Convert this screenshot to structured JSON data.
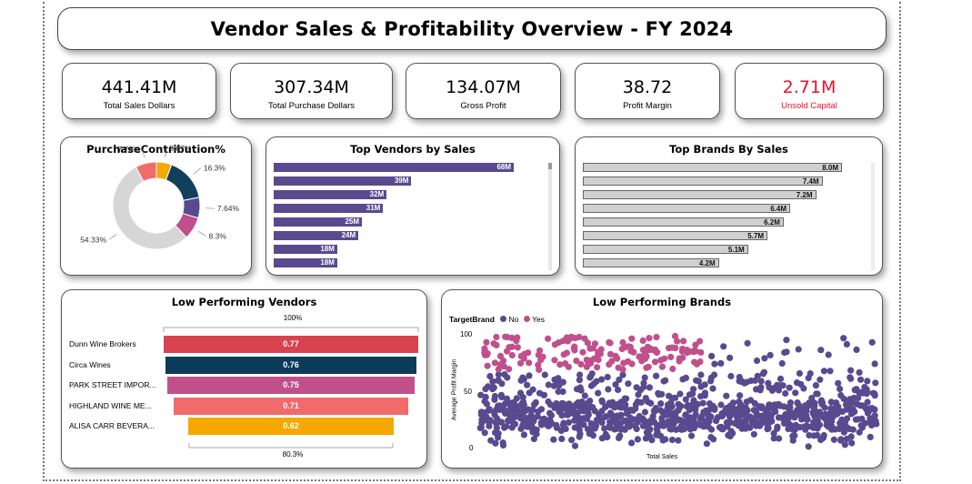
{
  "title": "Vendor Sales & Profitability Overview - FY 2024",
  "kpis": [
    {
      "value": "441.41M",
      "label": "Total Sales Dollars",
      "color": "#000000"
    },
    {
      "value": "307.34M",
      "label": "Total Purchase Dollars",
      "color": "#000000"
    },
    {
      "value": "134.07M",
      "label": "Gross Profit",
      "color": "#000000"
    },
    {
      "value": "38.72",
      "label": "Profit Margin",
      "color": "#000000"
    },
    {
      "value": "2.71M",
      "label": "Unsold Capital",
      "color": "#e8112d"
    }
  ],
  "purchase_contribution": {
    "title": "PurchaseContribution%",
    "slices": [
      {
        "label": "5.67%",
        "value": 5.67,
        "color": "#f5a800"
      },
      {
        "label": "16.3%",
        "value": 16.3,
        "color": "#123f5c"
      },
      {
        "label": "7.64%",
        "value": 7.64,
        "color": "#574a8f"
      },
      {
        "label": "8.3%",
        "value": 8.3,
        "color": "#c0508c"
      },
      {
        "label": "54.33%",
        "value": 54.33,
        "color": "#d6d6d6"
      },
      {
        "label": "7.76%",
        "value": 7.76,
        "color": "#f26a6a"
      }
    ]
  },
  "top_vendors": {
    "title": "Top Vendors by Sales",
    "color": "#574a8f",
    "values": [
      68,
      39,
      32,
      31,
      25,
      24,
      18,
      18
    ],
    "labels": [
      "68M",
      "39M",
      "32M",
      "31M",
      "25M",
      "24M",
      "18M",
      "18M"
    ]
  },
  "top_brands": {
    "title": "Top Brands By Sales",
    "color": "#d0d0d0",
    "values": [
      8.0,
      7.4,
      7.2,
      6.4,
      6.2,
      5.7,
      5.1,
      4.2
    ],
    "labels": [
      "8.0M",
      "7.4M",
      "7.2M",
      "6.4M",
      "6.2M",
      "5.7M",
      "5.1M",
      "4.2M"
    ]
  },
  "low_vendors": {
    "title": "Low Performing Vendors",
    "top_label": "100%",
    "bottom_label": "80.3%",
    "rows": [
      {
        "name": "Dunn Wine Brokers",
        "value": 0.77,
        "label": "0.77",
        "color": "#d9434f"
      },
      {
        "name": "Circa Wines",
        "value": 0.76,
        "label": "0.76",
        "color": "#0d3b5a"
      },
      {
        "name": "PARK STREET IMPOR...",
        "value": 0.75,
        "label": "0.75",
        "color": "#c0508c"
      },
      {
        "name": "HIGHLAND WINE ME...",
        "value": 0.71,
        "label": "0.71",
        "color": "#f26a6a"
      },
      {
        "name": "ALISA CARR BEVERA...",
        "value": 0.62,
        "label": "0.62",
        "color": "#f5a800"
      }
    ]
  },
  "low_brands": {
    "title": "Low Performing Brands",
    "legend_title": "TargetBrand",
    "legend": [
      {
        "label": "No",
        "color": "#574a8f"
      },
      {
        "label": "Yes",
        "color": "#c0508c"
      }
    ],
    "y_axis_label": "Average Profit Margin",
    "x_axis_label": "Total Sales",
    "y_ticks": [
      "100",
      "50",
      "0"
    ]
  },
  "chart_data": [
    {
      "type": "pie",
      "title": "PurchaseContribution%",
      "categories": [
        "5.67%",
        "16.3%",
        "7.64%",
        "8.3%",
        "54.33%",
        "7.76%"
      ],
      "values": [
        5.67,
        16.3,
        7.64,
        8.3,
        54.33,
        7.76
      ]
    },
    {
      "type": "bar",
      "title": "Top Vendors by Sales",
      "values": [
        68,
        39,
        32,
        31,
        25,
        24,
        18,
        18
      ]
    },
    {
      "type": "bar",
      "title": "Top Brands By Sales",
      "values": [
        8.0,
        7.4,
        7.2,
        6.4,
        6.2,
        5.7,
        5.1,
        4.2
      ]
    },
    {
      "type": "bar",
      "title": "Low Performing Vendors",
      "categories": [
        "Dunn Wine Brokers",
        "Circa Wines",
        "PARK STREET IMPOR...",
        "HIGHLAND WINE ME...",
        "ALISA CARR BEVERA..."
      ],
      "values": [
        0.77,
        0.76,
        0.75,
        0.71,
        0.62
      ]
    },
    {
      "type": "scatter",
      "title": "Low Performing Brands",
      "xlabel": "Total Sales",
      "ylabel": "Average Profit Margin",
      "ylim": [
        0,
        100
      ],
      "series": [
        {
          "name": "No"
        },
        {
          "name": "Yes"
        }
      ]
    }
  ]
}
